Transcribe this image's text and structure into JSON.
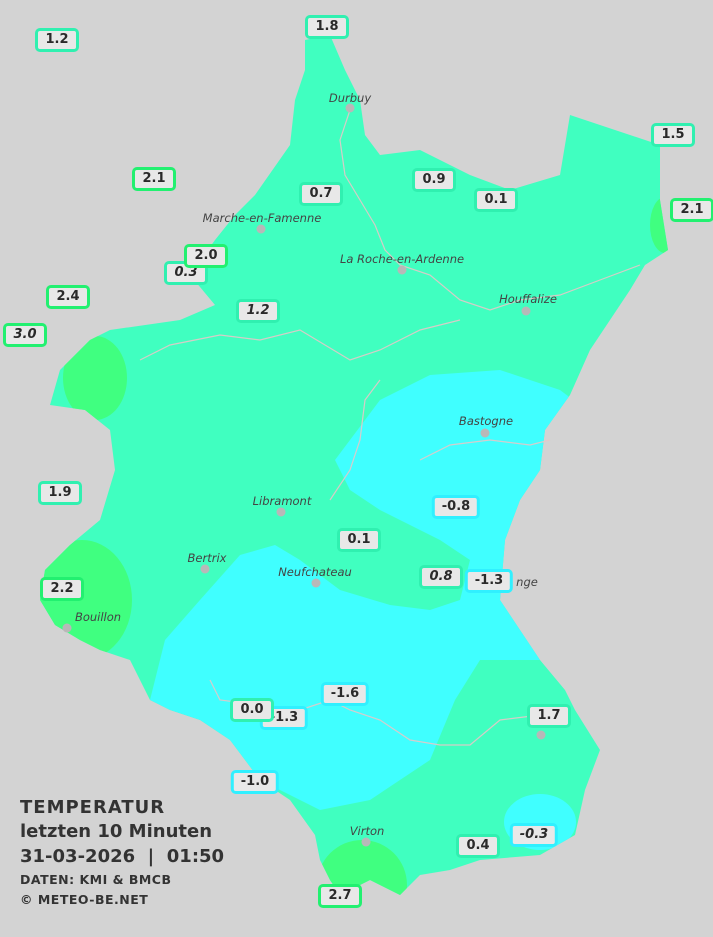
{
  "legend": {
    "title": "TEMPERATUR",
    "period": "letzten 10 Minuten",
    "datetime": "31-03-2026  |  01:50",
    "source": "DATEN: KMI & BMCB",
    "copyright": "© METEO-BE.NET"
  },
  "colors": {
    "background": "#d3d3d3",
    "band_0_to_2": "#40ffc0",
    "band_below_0": "#40ffff",
    "band_2_to_3": "#40ff80"
  },
  "towns": [
    {
      "name": "Durbuy"
    },
    {
      "name": "Marche-en-Famenne"
    },
    {
      "name": "La Roche-en-Ardenne"
    },
    {
      "name": "Houffalize"
    },
    {
      "name": "Bastogne"
    },
    {
      "name": "Libramont"
    },
    {
      "name": "Bertrix"
    },
    {
      "name": "Neufchateau"
    },
    {
      "name": "Bouillon"
    },
    {
      "name": "Virton"
    },
    {
      "name": "nge"
    }
  ],
  "stations": [
    {
      "value": "1.2",
      "band": "mid"
    },
    {
      "value": "1.8",
      "band": "mid"
    },
    {
      "value": "2.1",
      "band": "warm"
    },
    {
      "value": "0.7",
      "band": "mid"
    },
    {
      "value": "0.9",
      "band": "mid"
    },
    {
      "value": "0.1",
      "band": "mid"
    },
    {
      "value": "1.5",
      "band": "mid"
    },
    {
      "value": "2.1",
      "band": "warm"
    },
    {
      "value": "0.3",
      "band": "mid",
      "italic": true
    },
    {
      "value": "2.0",
      "band": "warm"
    },
    {
      "value": "2.4",
      "band": "warm"
    },
    {
      "value": "3.0",
      "band": "warm",
      "italic": true
    },
    {
      "value": "1.2",
      "band": "mid",
      "italic": true
    },
    {
      "value": "1.9",
      "band": "mid"
    },
    {
      "value": "-0.8",
      "band": "cold"
    },
    {
      "value": "0.1",
      "band": "mid"
    },
    {
      "value": "0.8",
      "band": "mid",
      "italic": true
    },
    {
      "value": "-1.3",
      "band": "cold"
    },
    {
      "value": "2.2",
      "band": "warm"
    },
    {
      "value": "-1.6",
      "band": "cold"
    },
    {
      "value": "-1.3",
      "band": "cold"
    },
    {
      "value": "0.0",
      "band": "mid"
    },
    {
      "value": "1.7",
      "band": "mid"
    },
    {
      "value": "-1.0",
      "band": "cold"
    },
    {
      "value": "0.4",
      "band": "mid"
    },
    {
      "value": "-0.3",
      "band": "cold",
      "italic": true
    },
    {
      "value": "2.7",
      "band": "warm"
    }
  ]
}
